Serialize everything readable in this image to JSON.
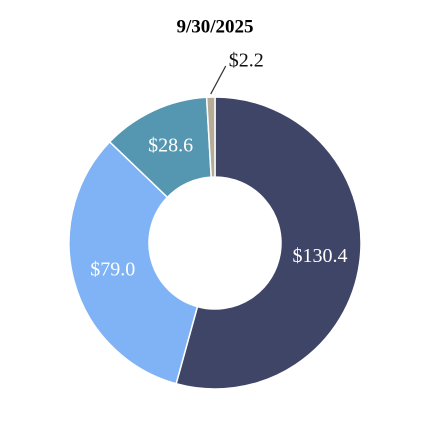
{
  "chart_data": {
    "type": "donut",
    "title": "9/30/2025",
    "values": [
      130.4,
      79.0,
      28.6,
      2.2
    ],
    "value_labels": [
      "$130.4",
      "$79.0",
      "$28.6",
      "$2.2"
    ],
    "colors": [
      "#3f4566",
      "#7fb3f5",
      "#5597b0",
      "#b5ab96"
    ]
  }
}
